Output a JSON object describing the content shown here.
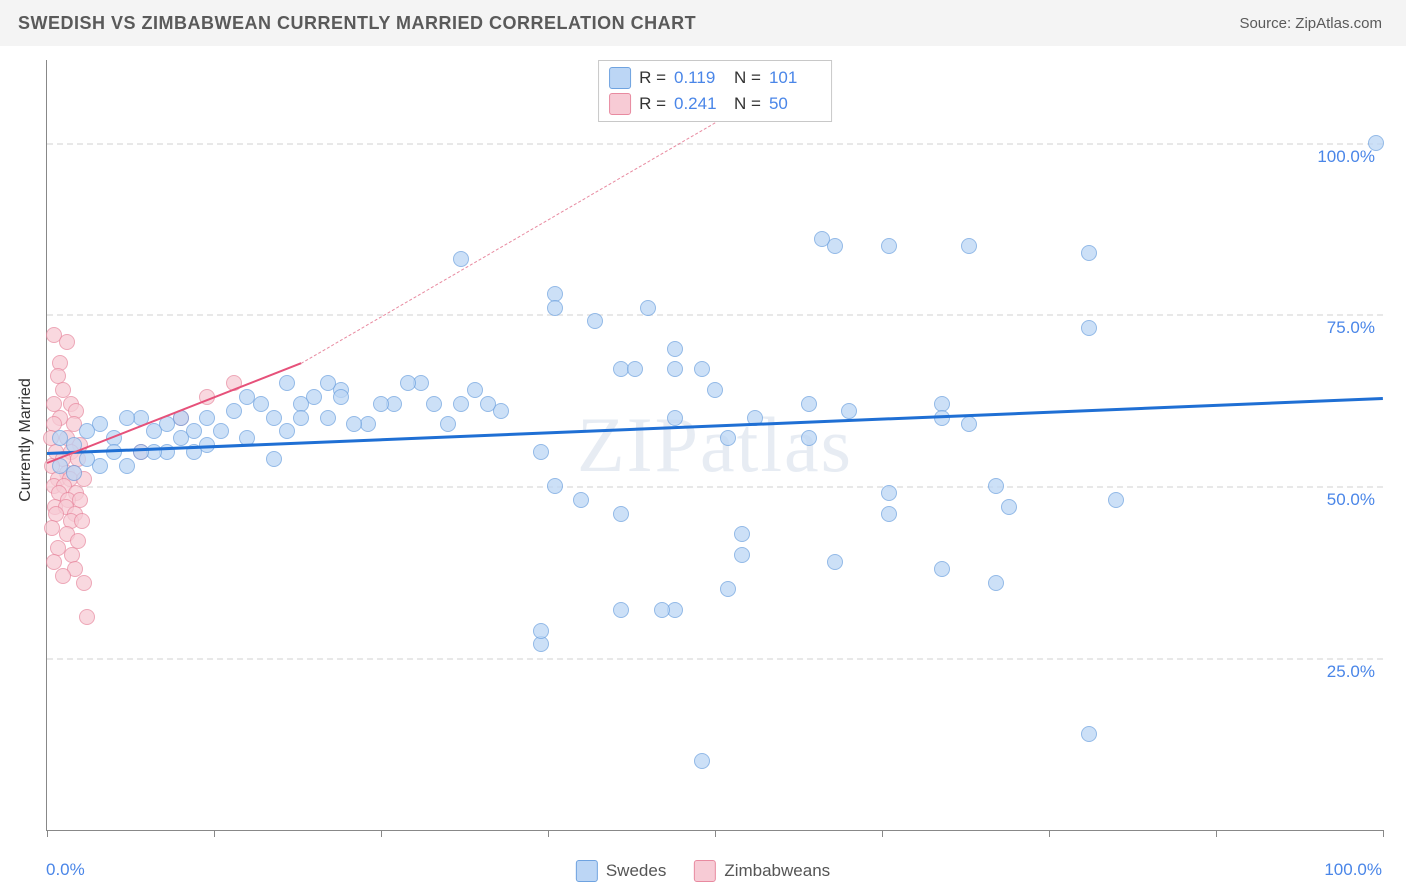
{
  "header": {
    "title": "SWEDISH VS ZIMBABWEAN CURRENTLY MARRIED CORRELATION CHART",
    "source": "Source: ZipAtlas.com"
  },
  "watermark": "ZIPatlas",
  "chart": {
    "type": "scatter",
    "y_axis_title": "Currently Married",
    "xlim": [
      0,
      100
    ],
    "ylim": [
      0,
      112
    ],
    "x_ticks": [
      0,
      12.5,
      25,
      37.5,
      50,
      62.5,
      75,
      87.5,
      100
    ],
    "x_tick_labels_shown": {
      "left": "0.0%",
      "right": "100.0%"
    },
    "y_gridlines": [
      25,
      50,
      75,
      100
    ],
    "y_tick_labels": [
      "25.0%",
      "50.0%",
      "75.0%",
      "100.0%"
    ],
    "background_color": "#ffffff",
    "grid_color": "#e8e8e8",
    "axis_color": "#888888",
    "tick_label_color": "#4a86e8",
    "point_radius": 8,
    "point_border_width": 1.5,
    "series": [
      {
        "name": "Swedes",
        "fill": "#bcd6f5",
        "stroke": "#6fa3e0",
        "opacity": 0.75,
        "trend": {
          "x1": 0,
          "y1": 55,
          "x2": 100,
          "y2": 63,
          "color": "#1f6fd4",
          "width": 3,
          "dash": false
        },
        "points": [
          [
            99.5,
            100
          ],
          [
            69,
            85
          ],
          [
            63,
            85
          ],
          [
            59,
            85
          ],
          [
            78,
            84
          ],
          [
            58,
            86
          ],
          [
            31,
            83
          ],
          [
            38,
            78
          ],
          [
            38,
            76
          ],
          [
            41,
            74
          ],
          [
            45,
            76
          ],
          [
            43,
            67
          ],
          [
            44,
            67
          ],
          [
            47,
            70
          ],
          [
            47,
            67
          ],
          [
            49,
            67
          ],
          [
            50,
            64
          ],
          [
            53,
            60
          ],
          [
            47,
            60
          ],
          [
            51,
            57
          ],
          [
            57,
            62
          ],
          [
            57,
            57
          ],
          [
            60,
            61
          ],
          [
            67,
            62
          ],
          [
            67,
            60
          ],
          [
            69,
            59
          ],
          [
            63,
            49
          ],
          [
            63,
            46
          ],
          [
            71,
            50
          ],
          [
            72,
            47
          ],
          [
            67,
            38
          ],
          [
            59,
            39
          ],
          [
            52,
            43
          ],
          [
            52,
            40
          ],
          [
            51,
            35
          ],
          [
            49,
            10
          ],
          [
            47,
            32
          ],
          [
            46,
            32
          ],
          [
            43,
            32
          ],
          [
            37,
            27
          ],
          [
            37,
            29
          ],
          [
            37,
            55
          ],
          [
            38,
            50
          ],
          [
            40,
            48
          ],
          [
            43,
            46
          ],
          [
            71,
            36
          ],
          [
            78,
            73
          ],
          [
            80,
            48
          ],
          [
            78,
            14
          ],
          [
            34,
            61
          ],
          [
            32,
            64
          ],
          [
            33,
            62
          ],
          [
            31,
            62
          ],
          [
            29,
            62
          ],
          [
            30,
            59
          ],
          [
            28,
            65
          ],
          [
            27,
            65
          ],
          [
            26,
            62
          ],
          [
            25,
            62
          ],
          [
            24,
            59
          ],
          [
            23,
            59
          ],
          [
            22,
            64
          ],
          [
            22,
            63
          ],
          [
            21,
            60
          ],
          [
            21,
            65
          ],
          [
            20,
            63
          ],
          [
            19,
            62
          ],
          [
            19,
            60
          ],
          [
            18,
            58
          ],
          [
            18,
            65
          ],
          [
            17,
            60
          ],
          [
            17,
            54
          ],
          [
            16,
            62
          ],
          [
            15,
            63
          ],
          [
            15,
            57
          ],
          [
            14,
            61
          ],
          [
            13,
            58
          ],
          [
            12,
            60
          ],
          [
            12,
            56
          ],
          [
            11,
            58
          ],
          [
            11,
            55
          ],
          [
            10,
            60
          ],
          [
            10,
            57
          ],
          [
            9,
            59
          ],
          [
            9,
            55
          ],
          [
            8,
            58
          ],
          [
            8,
            55
          ],
          [
            7,
            60
          ],
          [
            7,
            55
          ],
          [
            6,
            60
          ],
          [
            6,
            53
          ],
          [
            5,
            57
          ],
          [
            5,
            55
          ],
          [
            4,
            59
          ],
          [
            4,
            53
          ],
          [
            3,
            58
          ],
          [
            3,
            54
          ],
          [
            2,
            56
          ],
          [
            2,
            52
          ],
          [
            1,
            57
          ],
          [
            1,
            53
          ]
        ]
      },
      {
        "name": "Zimbabweans",
        "fill": "#f7cbd5",
        "stroke": "#e88aa0",
        "opacity": 0.75,
        "trend": {
          "x1": 0,
          "y1": 53.5,
          "x2": 19,
          "y2": 68,
          "color": "#e6517a",
          "width": 2.5,
          "dash": false
        },
        "trend_extension": {
          "x1": 19,
          "y1": 68,
          "x2": 50,
          "y2": 103,
          "color": "#e88aa0",
          "width": 1.2,
          "dash": true
        },
        "points": [
          [
            0.5,
            72
          ],
          [
            1.5,
            71
          ],
          [
            1,
            68
          ],
          [
            0.8,
            66
          ],
          [
            1.2,
            64
          ],
          [
            0.5,
            62
          ],
          [
            1.8,
            62
          ],
          [
            2.2,
            61
          ],
          [
            1,
            60
          ],
          [
            0.5,
            59
          ],
          [
            2,
            59
          ],
          [
            1.5,
            57
          ],
          [
            0.3,
            57
          ],
          [
            2.5,
            56
          ],
          [
            1.8,
            55
          ],
          [
            0.7,
            55
          ],
          [
            1.2,
            54
          ],
          [
            2.3,
            54
          ],
          [
            0.4,
            53
          ],
          [
            1.5,
            52
          ],
          [
            2,
            52
          ],
          [
            0.8,
            51
          ],
          [
            1.7,
            51
          ],
          [
            2.8,
            51
          ],
          [
            0.5,
            50
          ],
          [
            1.3,
            50
          ],
          [
            2.2,
            49
          ],
          [
            0.9,
            49
          ],
          [
            1.6,
            48
          ],
          [
            2.5,
            48
          ],
          [
            0.6,
            47
          ],
          [
            1.4,
            47
          ],
          [
            2.1,
            46
          ],
          [
            0.7,
            46
          ],
          [
            1.8,
            45
          ],
          [
            2.6,
            45
          ],
          [
            0.4,
            44
          ],
          [
            1.5,
            43
          ],
          [
            2.3,
            42
          ],
          [
            0.8,
            41
          ],
          [
            1.9,
            40
          ],
          [
            0.5,
            39
          ],
          [
            2.1,
            38
          ],
          [
            1.2,
            37
          ],
          [
            2.8,
            36
          ],
          [
            3,
            31
          ],
          [
            7,
            55
          ],
          [
            10,
            60
          ],
          [
            12,
            63
          ],
          [
            14,
            65
          ]
        ]
      }
    ],
    "stats_box": {
      "rows": [
        {
          "swatch_fill": "#bcd6f5",
          "swatch_stroke": "#6fa3e0",
          "r_label": "R =",
          "r_val": "0.119",
          "n_label": "N =",
          "n_val": "101"
        },
        {
          "swatch_fill": "#f7cbd5",
          "swatch_stroke": "#e88aa0",
          "r_label": "R =",
          "r_val": "0.241",
          "n_label": "N =",
          "n_val": "50"
        }
      ]
    },
    "bottom_legend": [
      {
        "swatch_fill": "#bcd6f5",
        "swatch_stroke": "#6fa3e0",
        "label": "Swedes"
      },
      {
        "swatch_fill": "#f7cbd5",
        "swatch_stroke": "#e88aa0",
        "label": "Zimbabweans"
      }
    ]
  }
}
